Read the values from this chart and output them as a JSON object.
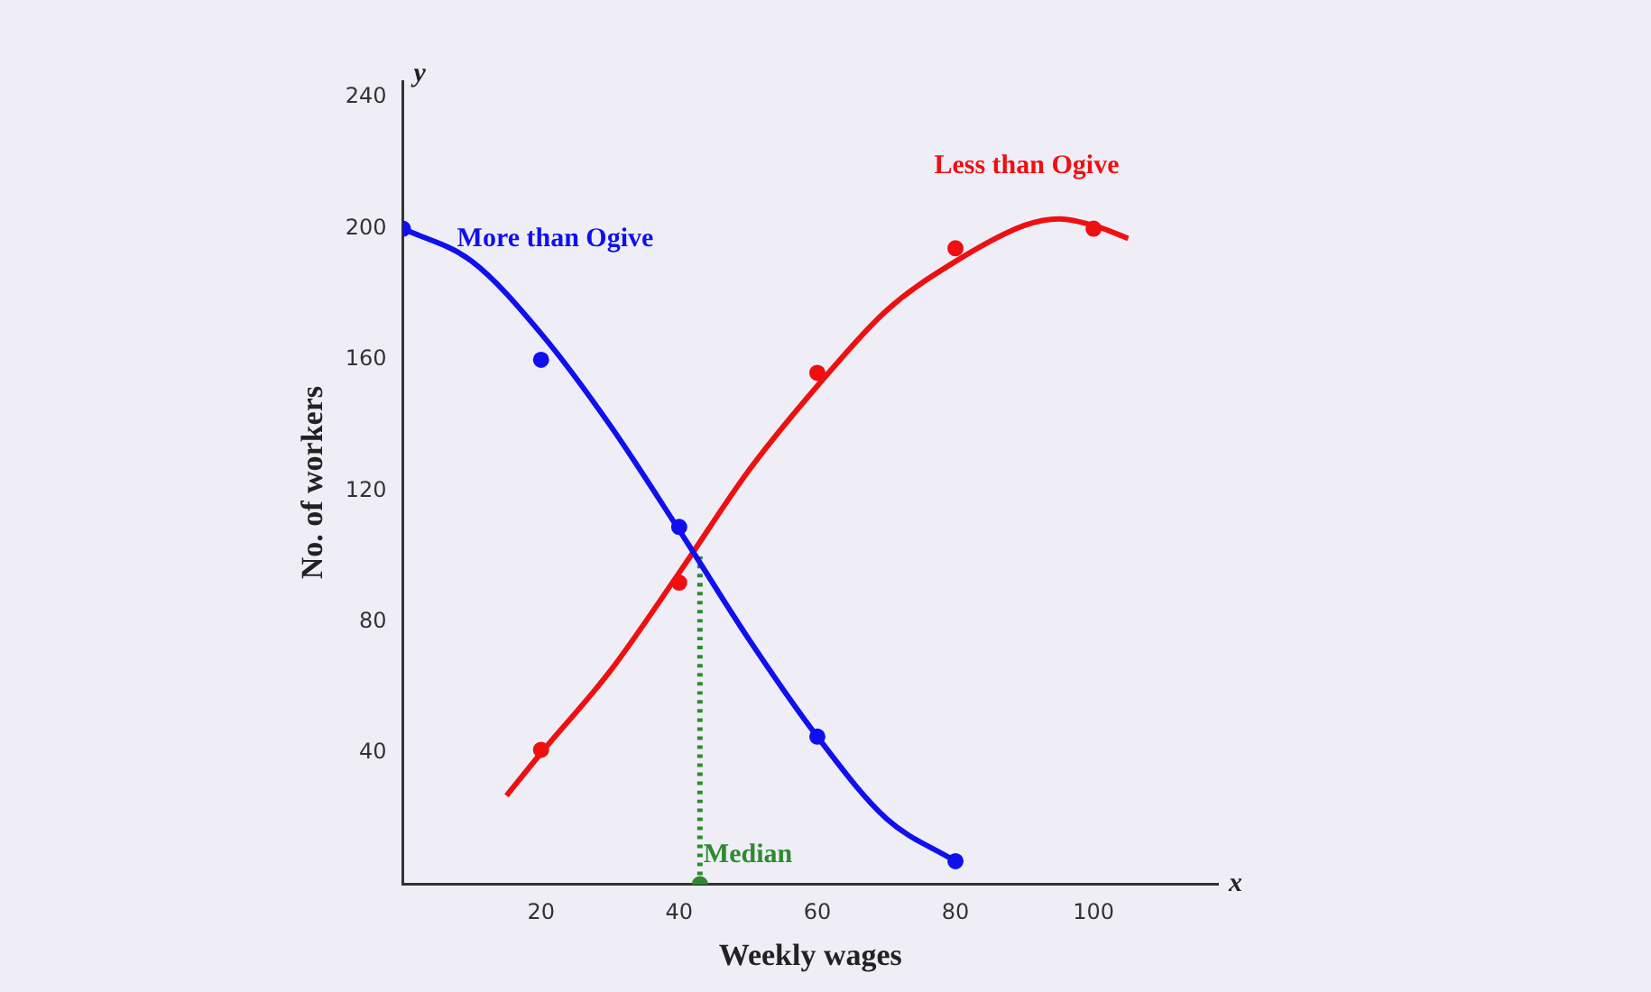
{
  "chart_data": {
    "type": "line",
    "xlabel": "Weekly wages",
    "ylabel": "No. of workers",
    "xlim": [
      0,
      118
    ],
    "ylim": [
      0,
      245
    ],
    "xticks": [
      20,
      40,
      60,
      80,
      100
    ],
    "yticks": [
      40,
      80,
      120,
      160,
      200,
      240
    ],
    "grid": false,
    "legend": false,
    "annotations": [
      "x",
      "y",
      {
        "text": "Median",
        "x": 43,
        "y": 0
      }
    ],
    "series": [
      {
        "name": "More than Ogive",
        "color": "#1010ee",
        "marker": "none",
        "x": [
          0,
          10,
          20,
          30,
          40,
          50,
          60,
          70,
          80
        ],
        "values": [
          200,
          190,
          168,
          140,
          108,
          75,
          45,
          20,
          7
        ]
      },
      {
        "name": "Less than Ogive",
        "color": "#ee1010",
        "marker": "none",
        "x": [
          15,
          20,
          30,
          40,
          50,
          60,
          70,
          80,
          90,
          95,
          100,
          105
        ],
        "values": [
          27,
          40,
          65,
          95,
          126,
          152,
          175,
          190,
          201,
          203,
          201,
          197
        ]
      },
      {
        "type": "scatter",
        "color": "#1010ee",
        "marker": "circle",
        "x": [
          0,
          20,
          40,
          60,
          80
        ],
        "values": [
          200,
          160,
          109,
          45,
          7
        ]
      },
      {
        "type": "scatter",
        "color": "#ee1010",
        "marker": "circle",
        "x": [
          20,
          40,
          60,
          80,
          100
        ],
        "values": [
          41,
          92,
          156,
          194,
          200
        ]
      },
      {
        "color": "#2e8b2e",
        "marker": "none",
        "line_style": "dotted",
        "x": [
          43,
          43
        ],
        "values": [
          0,
          100
        ]
      },
      {
        "type": "scatter",
        "color": "#2e8b2e",
        "marker": "circle",
        "x": [
          43
        ],
        "values": [
          0
        ]
      }
    ]
  }
}
